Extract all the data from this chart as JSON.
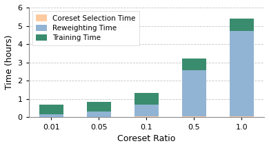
{
  "categories": [
    "0.01",
    "0.05",
    "0.1",
    "0.5",
    "1.0"
  ],
  "coreset_selection": [
    0.03,
    0.03,
    0.04,
    0.05,
    0.05
  ],
  "reweighting": [
    0.13,
    0.27,
    0.65,
    2.52,
    4.68
  ],
  "training": [
    0.52,
    0.55,
    0.63,
    0.65,
    0.68
  ],
  "colors": {
    "coreset": "#FECBA1",
    "reweighting": "#92B4D4",
    "training": "#3A8C6E"
  },
  "legend_labels": [
    "Coreset Selection Time",
    "Reweighting Time",
    "Training Time"
  ],
  "xlabel": "Coreset Ratio",
  "ylabel": "Time (hours)",
  "ylim": [
    0,
    6
  ],
  "yticks": [
    0,
    1,
    2,
    3,
    4,
    5,
    6
  ],
  "background_color": "#ffffff",
  "grid_color": "#aaaaaa"
}
